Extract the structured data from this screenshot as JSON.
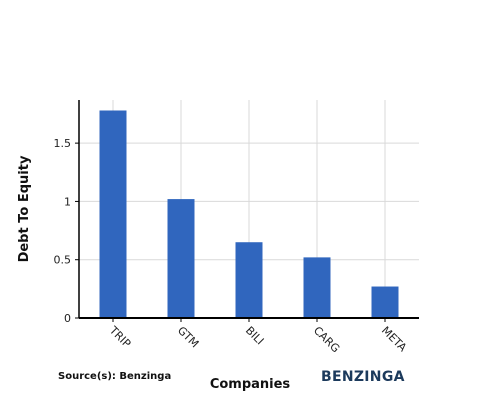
{
  "chart_data": {
    "type": "bar",
    "categories": [
      "TRIP",
      "GTM",
      "BILI",
      "CARG",
      "META"
    ],
    "values": [
      1.78,
      1.02,
      0.65,
      0.52,
      0.27
    ],
    "xlabel": "Companies",
    "ylabel": "Debt To Equity",
    "ylim": [
      0,
      1.87
    ],
    "yticks": [
      0,
      0.5,
      1,
      1.5
    ],
    "ytick_labels": [
      "0",
      "0.5",
      "1",
      "1.5"
    ],
    "grid": true,
    "bar_color": "#3066be"
  },
  "footer": {
    "source": "Source(s): Benzinga",
    "brand": "BENZINGA",
    "brand_color": "#1c3a5c"
  }
}
